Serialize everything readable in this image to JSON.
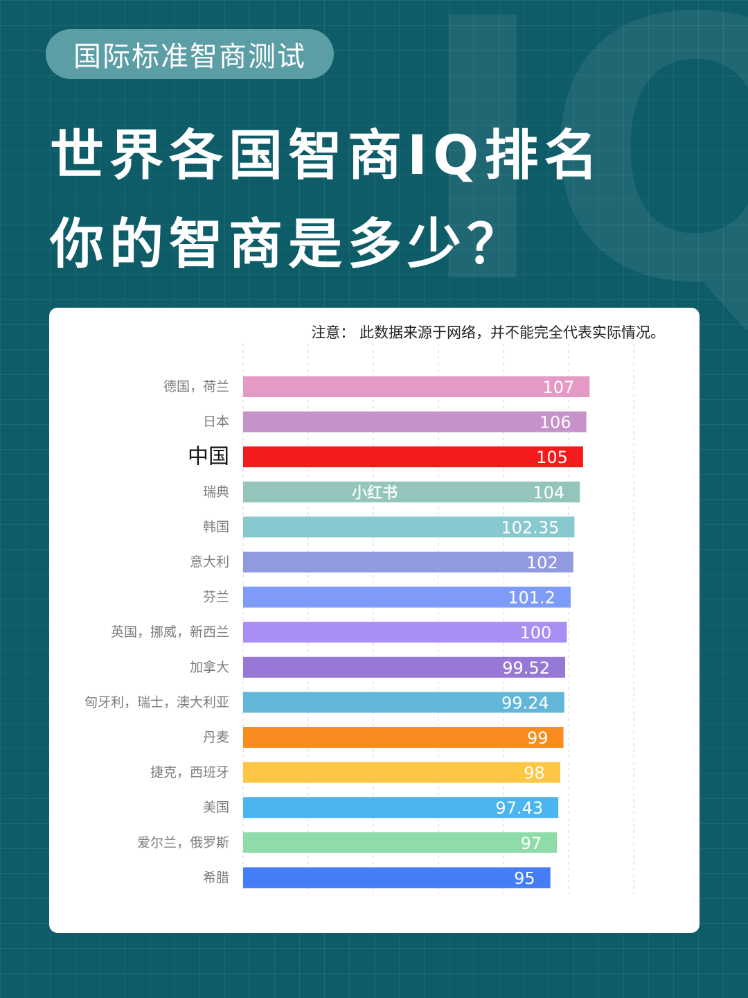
{
  "badge": "国际标准智商测试",
  "title_line1": "世界各国智商IQ排名",
  "title_line2": "你的智商是多少？",
  "background_text": "IQ",
  "note": "注意： 此数据来源于网络，并不能完全代表实际情况。",
  "watermark": "小红书",
  "chart_data": {
    "type": "bar",
    "orientation": "horizontal",
    "highlighted_category": "中国",
    "grid": "vertical dashed",
    "categories": [
      "德国，荷兰",
      "日本",
      "中国",
      "瑞典",
      "韩国",
      "意大利",
      "芬兰",
      "英国，挪威，新西兰",
      "加拿大",
      "匈牙利，瑞士，澳大利亚",
      "丹麦",
      "捷克，西班牙",
      "美国",
      "爱尔兰，俄罗斯",
      "希腊"
    ],
    "values": [
      107,
      106,
      105,
      104,
      102.35,
      102,
      101.2,
      100,
      99.52,
      99.24,
      99,
      98,
      97.43,
      97,
      95
    ],
    "value_labels": [
      "107",
      "106",
      "105",
      "104",
      "102.35",
      "102",
      "101.2",
      "100",
      "99.52",
      "99.24",
      "99",
      "98",
      "97.43",
      "97",
      "95"
    ],
    "colors": [
      "#e59ac6",
      "#c792c9",
      "#f31b1b",
      "#93c5bc",
      "#88c9cf",
      "#9199e0",
      "#7f9bf8",
      "#a98ef3",
      "#9878d6",
      "#62b6d8",
      "#fa8c1f",
      "#fdc645",
      "#4ab5ef",
      "#8ddca9",
      "#447df5"
    ]
  }
}
